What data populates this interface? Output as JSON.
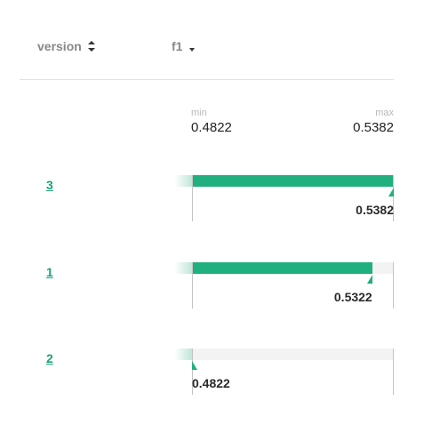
{
  "header": {
    "version_label": "version",
    "f1_label": "f1"
  },
  "scale": {
    "min_label": "min",
    "max_label": "max",
    "min_value": "0.4822",
    "max_value": "0.5382"
  },
  "rows": [
    {
      "version": "3",
      "value": "0.5382",
      "fraction": 1.0
    },
    {
      "version": "1",
      "value": "0.5322",
      "fraction": 0.893
    },
    {
      "version": "2",
      "value": "0.4822",
      "fraction": 0.0
    }
  ],
  "colors": {
    "accent": "#20b07f",
    "link": "#1aa37a"
  }
}
